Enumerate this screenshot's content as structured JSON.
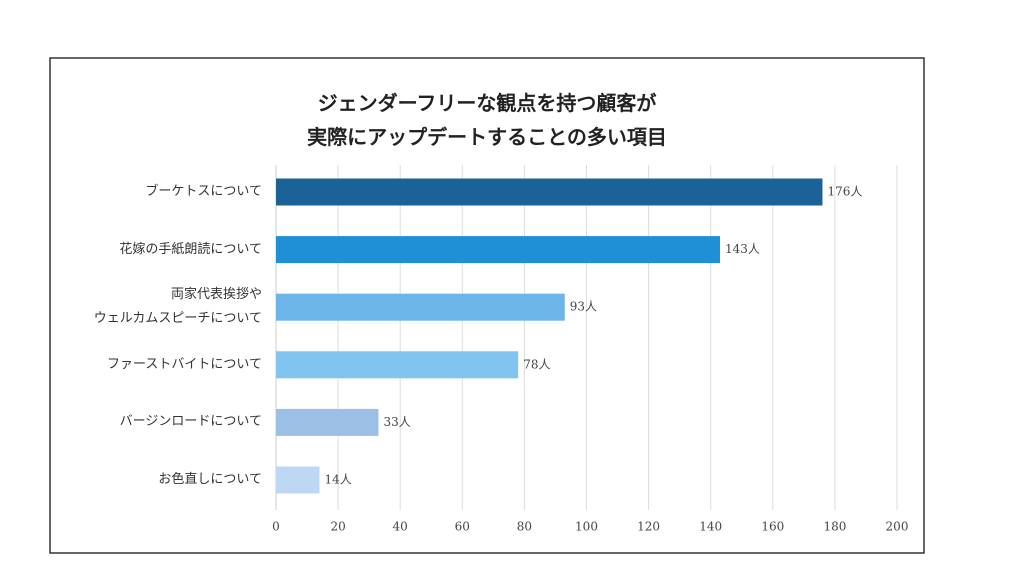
{
  "chart_data": {
    "type": "barh",
    "title": "ジェンダーフリーな観点を持つ顧客が\n実際にアップデートすることの多い項目",
    "categories": [
      "ブーケトスについて",
      "花嫁の手紙朗読について",
      "両家代表挨拶や\nウェルカムスピーチについて",
      "ファーストバイトについて",
      "バージンロードについて",
      "お色直しについて"
    ],
    "values": [
      176,
      143,
      93,
      78,
      33,
      14
    ],
    "value_labels": [
      "176人",
      "143人",
      "93人",
      "78人",
      "33人",
      "14人"
    ],
    "colors": [
      "#1b6397",
      "#1f8fd6",
      "#6cb5e9",
      "#80c4ef",
      "#9cbfe6",
      "#bcd8f2"
    ],
    "xlim": [
      0,
      200
    ],
    "xticks": [
      0,
      20,
      40,
      60,
      80,
      100,
      120,
      140,
      160,
      180,
      200
    ],
    "grid": true
  }
}
